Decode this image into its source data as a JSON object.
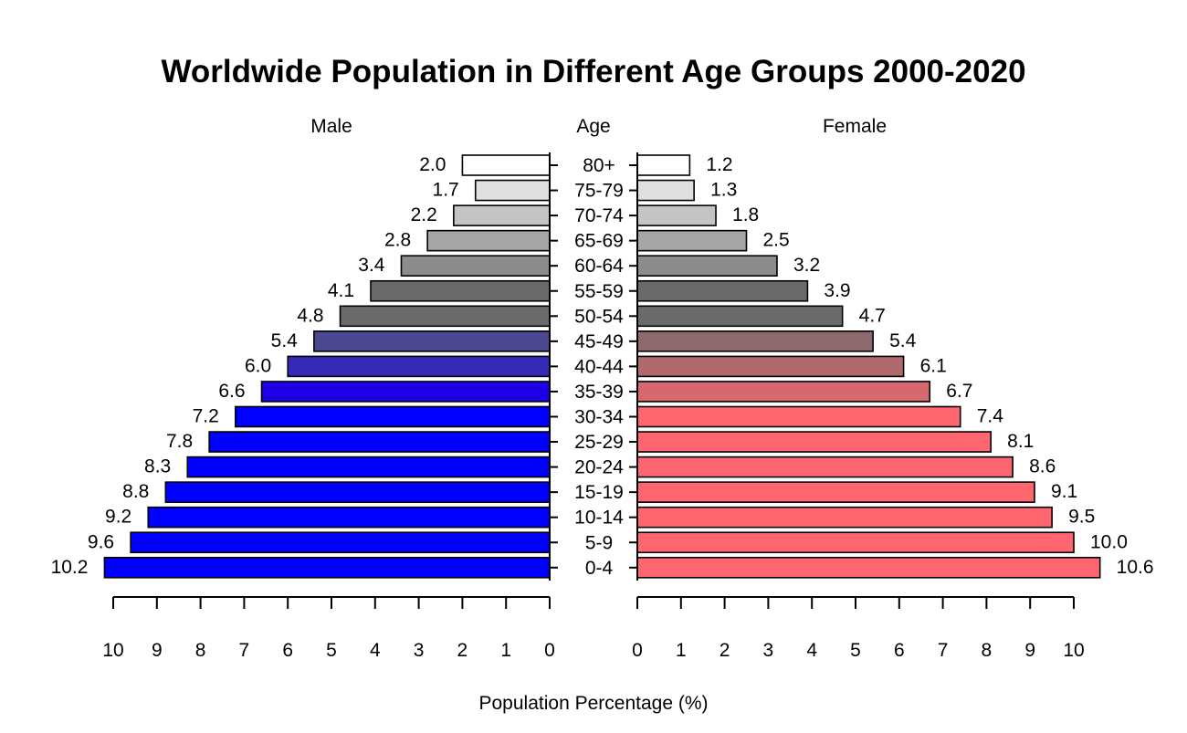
{
  "chart_data": {
    "type": "bar",
    "orientation": "horizontal",
    "layout": "population-pyramid",
    "title": "Worldwide Population in Different Age Groups 2000-2020",
    "left_header": "Male",
    "center_header": "Age",
    "right_header": "Female",
    "xlabel": "Population Percentage (%)",
    "categories": [
      "0-4",
      "5-9",
      "10-14",
      "15-19",
      "20-24",
      "25-29",
      "30-34",
      "35-39",
      "40-44",
      "45-49",
      "50-54",
      "55-59",
      "60-64",
      "65-69",
      "70-74",
      "75-79",
      "80+"
    ],
    "series": [
      {
        "name": "Male",
        "side": "left",
        "values": [
          10.2,
          9.6,
          9.2,
          8.8,
          8.3,
          7.8,
          7.2,
          6.6,
          6.0,
          5.4,
          4.8,
          4.1,
          3.4,
          2.8,
          2.2,
          1.7,
          2.0
        ],
        "value_labels": [
          "10.2",
          "9.6",
          "9.2",
          "8.8",
          "8.3",
          "7.8",
          "7.2",
          "6.6",
          "6.0",
          "5.4",
          "4.8",
          "4.1",
          "3.4",
          "2.8",
          "2.2",
          "1.7",
          "2.0"
        ],
        "colors": [
          "#0000ff",
          "#0000ff",
          "#0000ff",
          "#0000ff",
          "#0000ff",
          "#0000ff",
          "#0000ff",
          "#1f00e6",
          "#3429b8",
          "#4b4791",
          "#6a6a6a",
          "#6a6a6a",
          "#8c8c8c",
          "#a6a6a6",
          "#c4c4c4",
          "#e0e0e0",
          "#ffffff"
        ]
      },
      {
        "name": "Female",
        "side": "right",
        "values": [
          10.6,
          10.0,
          9.5,
          9.1,
          8.6,
          8.1,
          7.4,
          6.7,
          6.1,
          5.4,
          4.7,
          3.9,
          3.2,
          2.5,
          1.8,
          1.3,
          1.2
        ],
        "value_labels": [
          "10.6",
          "10.0",
          "9.5",
          "9.1",
          "8.6",
          "8.1",
          "7.4",
          "6.7",
          "6.1",
          "5.4",
          "4.7",
          "3.9",
          "3.2",
          "2.5",
          "1.8",
          "1.3",
          "1.2"
        ],
        "colors": [
          "#ff6670",
          "#ff6670",
          "#ff6670",
          "#ff6670",
          "#ff6670",
          "#ff6670",
          "#ff6670",
          "#d86870",
          "#b06a6e",
          "#8c6a6d",
          "#6a6a6a",
          "#6a6a6a",
          "#8c8c8c",
          "#a6a6a6",
          "#c4c4c4",
          "#e0e0e0",
          "#ffffff"
        ]
      }
    ],
    "left_axis": {
      "range": [
        10,
        0
      ],
      "ticks": [
        "10",
        "9",
        "8",
        "7",
        "6",
        "5",
        "4",
        "3",
        "2",
        "1",
        "0"
      ]
    },
    "right_axis": {
      "range": [
        0,
        10
      ],
      "ticks": [
        "0",
        "1",
        "2",
        "3",
        "4",
        "5",
        "6",
        "7",
        "8",
        "9",
        "10"
      ]
    },
    "grid": false,
    "legend": "none"
  }
}
